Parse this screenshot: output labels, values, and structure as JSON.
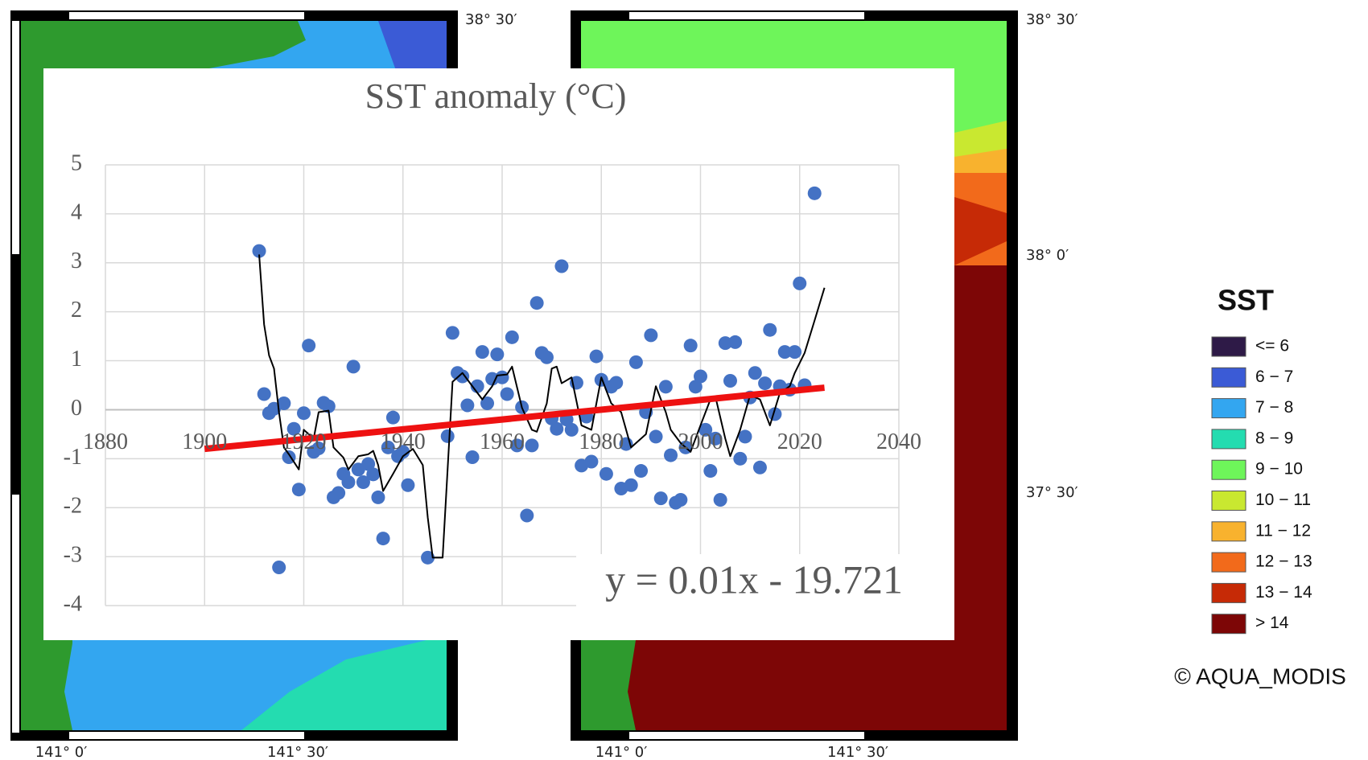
{
  "chart_data": {
    "type": "scatter",
    "title": "SST anomaly (°C)",
    "annotation": "y = 0.01x - 19.721",
    "xlim": [
      1880,
      2040
    ],
    "xticks": [
      1880,
      1900,
      1920,
      1940,
      1960,
      1980,
      2000,
      2020,
      2040
    ],
    "ylim": [
      -4,
      5
    ],
    "yticks": [
      -4,
      -3,
      -2,
      -1,
      0,
      1,
      2,
      3,
      4,
      5
    ],
    "grid": true,
    "series": [
      {
        "style": "markers",
        "color": "#4472c4",
        "x": [
          1911,
          1912,
          1913,
          1914,
          1915,
          1916,
          1917,
          1918,
          1919,
          1920,
          1921,
          1922,
          1923,
          1924,
          1925,
          1926,
          1927,
          1928,
          1929,
          1930,
          1931,
          1932,
          1933,
          1934,
          1935,
          1936,
          1937,
          1938,
          1939,
          1940,
          1941,
          1945,
          1949,
          1950,
          1951,
          1952,
          1953,
          1954,
          1955,
          1956,
          1957,
          1958,
          1959,
          1960,
          1961,
          1962,
          1963,
          1964,
          1965,
          1966,
          1967,
          1968,
          1969,
          1970,
          1971,
          1972,
          1973,
          1974,
          1975,
          1976,
          1977,
          1978,
          1979,
          1980,
          1981,
          1982,
          1983,
          1984,
          1985,
          1986,
          1987,
          1988,
          1989,
          1990,
          1991,
          1992,
          1993,
          1994,
          1995,
          1996,
          1997,
          1998,
          1999,
          2000,
          2001,
          2002,
          2003,
          2004,
          2005,
          2006,
          2007,
          2008,
          2009,
          2010,
          2011,
          2012,
          2013,
          2014,
          2015,
          2016,
          2017,
          2018,
          2019,
          2020,
          2021,
          2023
        ],
        "values": [
          3.24,
          0.32,
          -0.07,
          0.02,
          -3.22,
          0.13,
          -0.97,
          -0.39,
          -1.63,
          -0.07,
          1.31,
          -0.86,
          -0.79,
          0.14,
          0.07,
          -1.79,
          -1.7,
          -1.31,
          -1.48,
          0.88,
          -1.22,
          -1.48,
          -1.11,
          -1.32,
          -1.79,
          -2.63,
          -0.77,
          -0.16,
          -0.95,
          -0.86,
          -1.54,
          -3.02,
          -0.54,
          1.57,
          0.75,
          0.68,
          0.09,
          -0.97,
          0.48,
          1.18,
          0.13,
          0.63,
          1.13,
          0.66,
          0.32,
          1.48,
          -0.73,
          0.05,
          -2.16,
          -0.73,
          2.18,
          1.16,
          1.07,
          -0.18,
          -0.39,
          2.93,
          -0.2,
          -0.41,
          0.55,
          -1.14,
          -0.14,
          -1.06,
          1.09,
          0.61,
          -1.31,
          0.47,
          0.55,
          -1.61,
          -0.7,
          -1.54,
          0.97,
          -1.25,
          -0.05,
          1.52,
          -0.55,
          -1.81,
          0.47,
          -0.93,
          -1.9,
          -1.84,
          -0.77,
          1.31,
          0.47,
          0.68,
          -0.41,
          -1.25,
          -0.59,
          -1.84,
          1.36,
          0.59,
          1.38,
          -1.0,
          -0.55,
          0.25,
          0.75,
          -1.18,
          0.54,
          1.63,
          -0.09,
          0.48,
          1.18,
          0.41,
          1.18,
          2.58,
          0.5,
          4.42
        ]
      },
      {
        "style": "line",
        "color": "#000000",
        "x": [
          1911,
          1912,
          1913,
          1914,
          1915,
          1916,
          1917,
          1919,
          1920,
          1922,
          1923,
          1925,
          1926,
          1928,
          1929,
          1931,
          1933,
          1934,
          1935,
          1936,
          1938,
          1940,
          1942,
          1944,
          1945,
          1946,
          1948,
          1950,
          1952,
          1954,
          1956,
          1958,
          1959,
          1961,
          1962,
          1964,
          1966,
          1967,
          1969,
          1970,
          1971,
          1972,
          1974,
          1976,
          1978,
          1980,
          1982,
          1984,
          1986,
          1989,
          1991,
          1993,
          1994,
          1996,
          1998,
          2000,
          2002,
          2003,
          2005,
          2006,
          2008,
          2010,
          2012,
          2014,
          2016,
          2018,
          2019,
          2021,
          2023,
          2025
        ],
        "values": [
          3.17,
          1.74,
          1.11,
          0.84,
          -0.05,
          -0.77,
          -0.91,
          -1.22,
          -0.41,
          -0.59,
          -0.05,
          -0.02,
          -0.77,
          -0.98,
          -1.22,
          -0.95,
          -0.91,
          -0.84,
          -1.13,
          -1.66,
          -1.31,
          -0.95,
          -0.8,
          -1.13,
          -2.2,
          -3.02,
          -3.02,
          0.57,
          0.75,
          0.48,
          0.21,
          0.48,
          0.7,
          0.72,
          0.88,
          0.04,
          -0.41,
          -0.45,
          0.13,
          0.84,
          0.88,
          0.54,
          0.66,
          -0.32,
          -0.41,
          0.66,
          0.13,
          -0.05,
          -0.77,
          -0.5,
          0.48,
          -0.05,
          -0.41,
          -0.68,
          -0.86,
          -0.32,
          0.21,
          0.27,
          -0.59,
          -0.95,
          -0.41,
          0.3,
          0.21,
          -0.32,
          0.34,
          0.48,
          0.75,
          1.16,
          1.82,
          2.49
        ]
      },
      {
        "style": "trendline",
        "color": "#ee1111",
        "x": [
          1900,
          2025
        ],
        "values": [
          -0.8,
          0.45
        ]
      }
    ]
  },
  "map_labels": {
    "lat": [
      "38° 30′",
      "38° 0′",
      "37° 30′"
    ],
    "lon": [
      "141° 0′",
      "141° 30′"
    ]
  },
  "legend": {
    "title": "SST",
    "items": [
      {
        "label": "<= 6",
        "color": "#2e1a47"
      },
      {
        "label": "6 − 7",
        "color": "#3b5bd6"
      },
      {
        "label": "7 − 8",
        "color": "#33a6f0"
      },
      {
        "label": "8 − 9",
        "color": "#24dcb0"
      },
      {
        "label": "9 − 10",
        "color": "#6ef55a"
      },
      {
        "label": "10 − 11",
        "color": "#c9e830"
      },
      {
        "label": "11 − 12",
        "color": "#f8b22e"
      },
      {
        "label": "12 − 13",
        "color": "#f26a1b"
      },
      {
        "label": "13 − 14",
        "color": "#c62a06"
      },
      {
        "label": "> 14",
        "color": "#7d0606"
      }
    ]
  },
  "credit": "© AQUA_MODIS"
}
